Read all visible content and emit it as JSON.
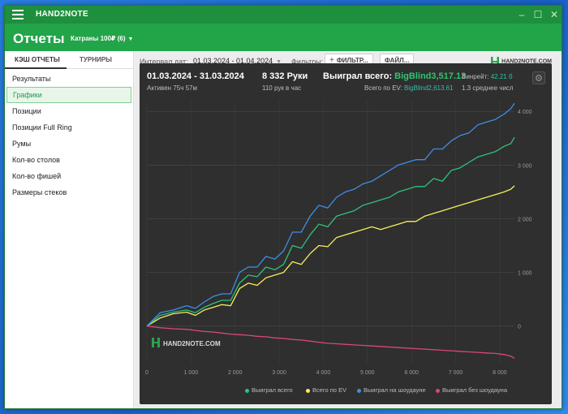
{
  "window": {
    "app_title": "HAND2NOTE"
  },
  "header": {
    "page_title": "Отчеты",
    "account": "Катраны 100₽ (6)"
  },
  "sidebar": {
    "tabs": [
      {
        "label": "КЭШ ОТЧЕТЫ"
      },
      {
        "label": "ТУРНИРЫ"
      }
    ],
    "items": [
      {
        "label": "Результаты"
      },
      {
        "label": "Графики"
      },
      {
        "label": "Позиции"
      },
      {
        "label": "Позиции Full Ring"
      },
      {
        "label": "Румы"
      },
      {
        "label": "Кол-во столов"
      },
      {
        "label": "Кол-во фишей"
      },
      {
        "label": "Размеры стеков"
      }
    ]
  },
  "toolbar": {
    "interval_label": "Интервал дат:",
    "interval_value": "01.03.2024 - 01.04.2024",
    "filters_label": "Фильтры:",
    "filter_button": "ФИЛЬТР...",
    "file_button": "ФАЙЛ...",
    "logo_text": "HAND2NOTE.COM"
  },
  "stats": {
    "period": "01.03.2024 - 31.03.2024",
    "active": "Активен 75ч 57м",
    "hands": "8 332 Руки",
    "hands_per_hour": "110 рук в час",
    "won_total_label": "Выиграл всего:",
    "won_total_value": "BigBlind3,517.13",
    "ev_label": "Всего по EV:",
    "ev_value": "BigBlind2,613.61",
    "winrate_label": "Винрейт:",
    "winrate_value": "42.21 б",
    "avg_text": "1.3 среднее числ"
  },
  "chart_watermark": "HAND2NOTE.COM",
  "colors": {
    "won_total": "#2ec27e",
    "ev": "#f5ef5a",
    "showdown": "#3d8fe6",
    "non_showdown": "#d9477a"
  },
  "chart_data": {
    "type": "line",
    "xlabel": "",
    "ylabel": "",
    "xlim": [
      0,
      8332
    ],
    "ylim": [
      -700,
      4200
    ],
    "xticks": [
      "0",
      "1 000",
      "2 000",
      "3 000",
      "4 000",
      "5 000",
      "6 000",
      "7 000",
      "8 000"
    ],
    "yticks": [
      "4 000",
      "3 000",
      "2 000",
      "1 000",
      "0"
    ],
    "series": [
      {
        "name": "Выиграл всего",
        "x": [
          0,
          300,
          600,
          900,
          1100,
          1300,
          1500,
          1700,
          1900,
          2100,
          2300,
          2500,
          2700,
          2900,
          3100,
          3300,
          3500,
          3700,
          3900,
          4100,
          4300,
          4500,
          4700,
          4900,
          5100,
          5300,
          5500,
          5700,
          5900,
          6100,
          6300,
          6500,
          6700,
          6900,
          7100,
          7300,
          7500,
          7700,
          7900,
          8100,
          8250,
          8332
        ],
        "y": [
          0,
          200,
          260,
          300,
          250,
          350,
          420,
          480,
          480,
          800,
          950,
          920,
          1100,
          1050,
          1150,
          1500,
          1450,
          1700,
          1900,
          1850,
          2050,
          2100,
          2150,
          2250,
          2300,
          2350,
          2400,
          2500,
          2550,
          2600,
          2600,
          2750,
          2700,
          2900,
          2950,
          3050,
          3150,
          3200,
          3250,
          3350,
          3400,
          3517
        ]
      },
      {
        "name": "Всего по EV",
        "x": [
          0,
          300,
          600,
          900,
          1100,
          1300,
          1500,
          1700,
          1900,
          2100,
          2300,
          2500,
          2700,
          2900,
          3100,
          3300,
          3500,
          3700,
          3900,
          4100,
          4300,
          4500,
          4700,
          4900,
          5100,
          5300,
          5500,
          5700,
          5900,
          6100,
          6300,
          6500,
          6700,
          6900,
          7100,
          7300,
          7500,
          7700,
          7900,
          8100,
          8250,
          8332
        ],
        "y": [
          0,
          150,
          230,
          260,
          200,
          300,
          350,
          400,
          380,
          700,
          800,
          760,
          900,
          950,
          1000,
          1200,
          1150,
          1350,
          1500,
          1480,
          1650,
          1700,
          1750,
          1800,
          1850,
          1800,
          1850,
          1900,
          1950,
          1950,
          2050,
          2100,
          2150,
          2200,
          2250,
          2300,
          2350,
          2400,
          2450,
          2500,
          2550,
          2614
        ]
      },
      {
        "name": "Выиграл на шоудауне",
        "x": [
          0,
          300,
          600,
          900,
          1100,
          1300,
          1500,
          1700,
          1900,
          2100,
          2300,
          2500,
          2700,
          2900,
          3100,
          3300,
          3500,
          3700,
          3900,
          4100,
          4300,
          4500,
          4700,
          4900,
          5100,
          5300,
          5500,
          5700,
          5900,
          6100,
          6300,
          6500,
          6700,
          6900,
          7100,
          7300,
          7500,
          7700,
          7900,
          8100,
          8250,
          8332
        ],
        "y": [
          0,
          250,
          300,
          380,
          330,
          450,
          550,
          600,
          600,
          1000,
          1100,
          1100,
          1300,
          1250,
          1400,
          1750,
          1750,
          2050,
          2250,
          2200,
          2400,
          2500,
          2550,
          2650,
          2700,
          2800,
          2900,
          3000,
          3050,
          3100,
          3100,
          3300,
          3300,
          3450,
          3550,
          3600,
          3750,
          3800,
          3850,
          3950,
          4050,
          4150
        ]
      },
      {
        "name": "Выиграл без шоудауна",
        "x": [
          0,
          300,
          600,
          900,
          1100,
          1300,
          1500,
          1700,
          1900,
          2100,
          2300,
          2500,
          2700,
          2900,
          3100,
          3300,
          3500,
          3700,
          3900,
          4100,
          4300,
          4500,
          4700,
          4900,
          5100,
          5300,
          5500,
          5700,
          5900,
          6100,
          6300,
          6500,
          6700,
          6900,
          7100,
          7300,
          7500,
          7700,
          7900,
          8100,
          8250,
          8332
        ],
        "y": [
          0,
          -30,
          -50,
          -60,
          -80,
          -100,
          -110,
          -130,
          -150,
          -160,
          -170,
          -190,
          -200,
          -220,
          -230,
          -250,
          -260,
          -280,
          -300,
          -320,
          -330,
          -340,
          -350,
          -360,
          -370,
          -380,
          -390,
          -400,
          -410,
          -420,
          -430,
          -440,
          -450,
          -460,
          -470,
          -480,
          -490,
          -500,
          -510,
          -530,
          -560,
          -600
        ]
      }
    ],
    "legend": "bottom",
    "grid": true
  }
}
